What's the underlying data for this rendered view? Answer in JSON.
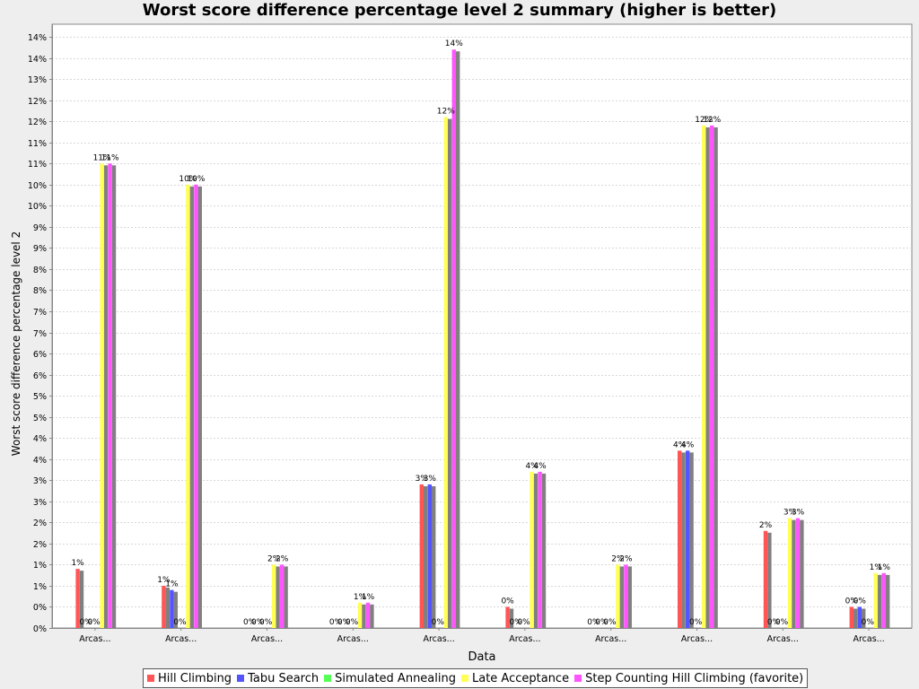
{
  "chart_data": {
    "type": "bar",
    "title": "Worst score difference percentage level 2 summary (higher is better)",
    "xlabel": "Data",
    "ylabel": "Worst score difference percentage level 2",
    "ylim": [
      0,
      14.3
    ],
    "grid": true,
    "legend_position": "bottom",
    "y_ticks": [
      0,
      0.5,
      1,
      1.5,
      2,
      2.5,
      3,
      3.5,
      4,
      4.5,
      5,
      5.5,
      6,
      6.5,
      7,
      7.5,
      8,
      8.5,
      9,
      9.5,
      10,
      10.5,
      11,
      11.5,
      12,
      12.5,
      13,
      13.5,
      14
    ],
    "y_tick_labels": [
      "0%",
      "0%",
      "1%",
      "1%",
      "2%",
      "2%",
      "3%",
      "3%",
      "4%",
      "4%",
      "5%",
      "5%",
      "6%",
      "6%",
      "7%",
      "7%",
      "8%",
      "8%",
      "9%",
      "9%",
      "10%",
      "10%",
      "11%",
      "11%",
      "12%",
      "12%",
      "13%",
      "14%",
      "14%"
    ],
    "categories": [
      "Arcas...",
      "Arcas...",
      "Arcas...",
      "Arcas...",
      "Arcas...",
      "Arcas...",
      "Arcas...",
      "Arcas...",
      "Arcas...",
      "Arcas..."
    ],
    "series": [
      {
        "name": "Hill Climbing",
        "color": "#ff5555",
        "values": [
          1.4,
          1.0,
          null,
          null,
          3.4,
          0.5,
          null,
          4.2,
          2.3,
          0.5
        ],
        "labels": [
          "1%",
          "1%",
          "0%",
          "0%",
          "3%",
          "0%",
          "0%",
          "4%",
          "2%",
          "0%"
        ]
      },
      {
        "name": "Tabu Search",
        "color": "#5555ff",
        "values": [
          0,
          0.9,
          0,
          0,
          3.4,
          0,
          0,
          4.2,
          0,
          0.5
        ],
        "labels": [
          "0%",
          "1%",
          "0%",
          "0%",
          "3%",
          "0%",
          "0%",
          "4%",
          "0%",
          "0%"
        ]
      },
      {
        "name": "Simulated Annealing",
        "color": "#55ff55",
        "values": [
          0,
          0,
          0,
          0,
          0,
          0,
          0,
          0,
          0,
          0
        ],
        "labels": [
          "0%",
          "0%",
          "0%",
          "0%",
          "0%",
          "0%",
          "0%",
          "0%",
          "0%",
          "0%"
        ]
      },
      {
        "name": "Late Acceptance",
        "color": "#ffff55",
        "values": [
          11.0,
          10.5,
          1.5,
          0.6,
          12.1,
          3.7,
          1.5,
          11.9,
          2.6,
          1.3
        ],
        "labels": [
          "11%",
          "10%",
          "2%",
          "1%",
          "12%",
          "4%",
          "2%",
          "12%",
          "3%",
          "1%"
        ]
      },
      {
        "name": "Step Counting Hill Climbing (favorite)",
        "color": "#ff55ff",
        "values": [
          11.0,
          10.5,
          1.5,
          0.6,
          13.7,
          3.7,
          1.5,
          11.9,
          2.6,
          1.3
        ],
        "labels": [
          "11%",
          "10%",
          "2%",
          "1%",
          "14%",
          "4%",
          "2%",
          "12%",
          "3%",
          "1%"
        ]
      }
    ]
  }
}
